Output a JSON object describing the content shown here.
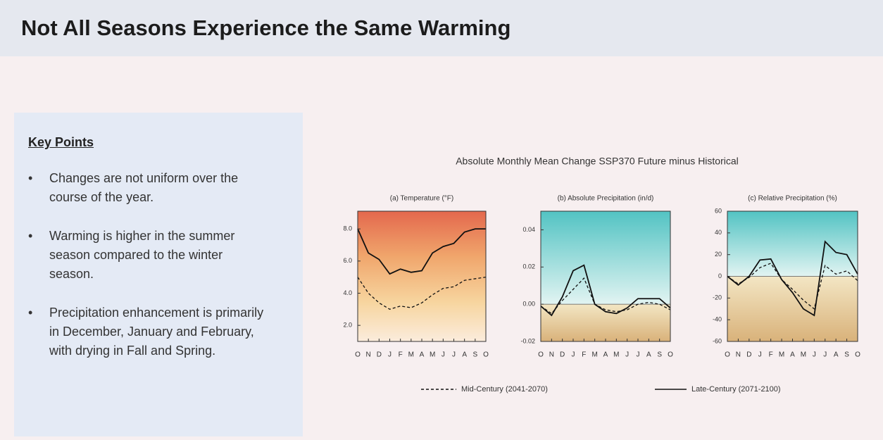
{
  "title": "Not All Seasons Experience the Same Warming",
  "key_points": {
    "heading": "Key Points",
    "items": [
      "Changes are not uniform over the course of the year.",
      "Warming is higher in the summer season compared to the winter season.",
      "Precipitation enhancement is primarily in December, January and February, with drying in Fall and Spring."
    ]
  },
  "figure_title": "Absolute Monthly Mean Change SSP370 Future minus Historical",
  "chart_data": [
    {
      "type": "line",
      "title": "(a) Temperature (°F)",
      "background": "warm",
      "categories": [
        "O",
        "N",
        "D",
        "J",
        "F",
        "M",
        "A",
        "M",
        "J",
        "J",
        "A",
        "S",
        "O"
      ],
      "ylim": [
        1,
        9.1
      ],
      "yticks": [
        {
          "value": 2,
          "label": "2.0"
        },
        {
          "value": 4,
          "label": "4.0"
        },
        {
          "value": 6,
          "label": "6.0"
        },
        {
          "value": 8,
          "label": "8.0"
        }
      ],
      "series": [
        {
          "name": "Mid-Century (2041-2070)",
          "color": "#111111",
          "dash": true,
          "values": [
            5.0,
            4.0,
            3.4,
            3.0,
            3.2,
            3.1,
            3.4,
            3.9,
            4.3,
            4.4,
            4.8,
            4.9,
            5.0
          ]
        },
        {
          "name": "Late-Century (2071-2100)",
          "color": "#111111",
          "dash": false,
          "values": [
            8.0,
            6.5,
            6.1,
            5.2,
            5.5,
            5.3,
            5.4,
            6.5,
            6.9,
            7.1,
            7.8,
            8.0,
            8.0
          ]
        }
      ]
    },
    {
      "type": "line",
      "title": "(b) Absolute Precipitation (in/d)",
      "background": "split",
      "categories": [
        "O",
        "N",
        "D",
        "J",
        "F",
        "M",
        "A",
        "M",
        "J",
        "J",
        "A",
        "S",
        "O"
      ],
      "ylim": [
        -0.02,
        0.05
      ],
      "yticks": [
        -0.02,
        {
          "value": 0,
          "label": "0.00"
        },
        0.02,
        0.04
      ],
      "series": [
        {
          "color": "#111111",
          "dash": true,
          "values": [
            -0.001,
            -0.005,
            0.002,
            0.008,
            0.014,
            0.0,
            -0.003,
            -0.004,
            -0.003,
            0.0,
            0.001,
            0.0,
            -0.003
          ]
        },
        {
          "color": "#111111",
          "dash": false,
          "values": [
            -0.001,
            -0.006,
            0.004,
            0.018,
            0.021,
            0.0,
            -0.004,
            -0.005,
            -0.002,
            0.003,
            0.003,
            0.003,
            -0.002
          ]
        }
      ]
    },
    {
      "type": "line",
      "title": "(c) Relative Precipitation (%)",
      "background": "split",
      "categories": [
        "O",
        "N",
        "D",
        "J",
        "F",
        "M",
        "A",
        "M",
        "J",
        "J",
        "A",
        "S",
        "O"
      ],
      "ylim": [
        -60,
        60
      ],
      "yticks": [
        -60,
        -40,
        -20,
        0,
        20,
        40,
        60
      ],
      "series": [
        {
          "color": "#111111",
          "dash": true,
          "values": [
            0,
            -7,
            -1,
            8,
            12,
            -3,
            -12,
            -22,
            -30,
            10,
            2,
            5,
            -4
          ]
        },
        {
          "color": "#111111",
          "dash": false,
          "values": [
            0,
            -8,
            0,
            15,
            16,
            -3,
            -15,
            -30,
            -36,
            32,
            22,
            20,
            2
          ]
        }
      ]
    }
  ]
}
